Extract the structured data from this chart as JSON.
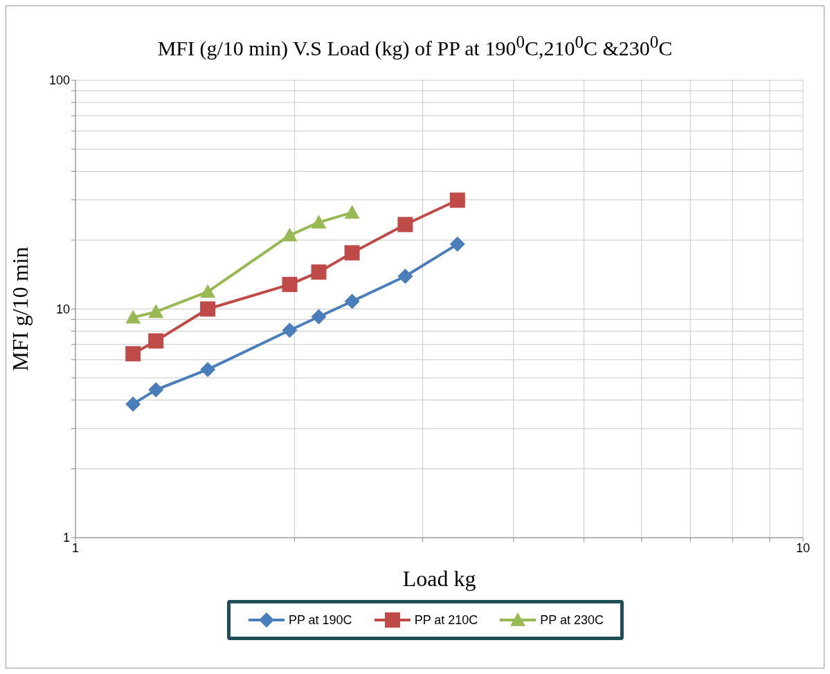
{
  "chart_data": {
    "type": "line",
    "title": "MFI (g/10 min) V.S Load (kg) of PP at 190$^{0}$C,210$^{0}$C &230$^{0}$C",
    "xlabel": "Load kg",
    "ylabel": "MFI g/10 min",
    "log": "xy",
    "grid": true,
    "legend": "bottom",
    "line_style": "solid",
    "xlim": [
      1,
      10
    ],
    "xticks": [
      1,
      {
        "value": 2,
        "label": null
      },
      {
        "value": 3,
        "label": null
      },
      {
        "value": 4,
        "label": null
      },
      {
        "value": 5,
        "label": null
      },
      {
        "value": 6,
        "label": null
      },
      {
        "value": 7,
        "label": null
      },
      {
        "value": 8,
        "label": null
      },
      {
        "value": 9,
        "label": null
      },
      10
    ],
    "ylim": [
      1,
      100
    ],
    "yticks": [
      1,
      {
        "value": 2,
        "label": null
      },
      {
        "value": 3,
        "label": null
      },
      {
        "value": 4,
        "label": null
      },
      {
        "value": 5,
        "label": null
      },
      {
        "value": 6,
        "label": null
      },
      {
        "value": 7,
        "label": null
      },
      {
        "value": 8,
        "label": null
      },
      {
        "value": 9,
        "label": null
      },
      10,
      {
        "value": 20,
        "label": null
      },
      {
        "value": 30,
        "label": null
      },
      {
        "value": 40,
        "label": null
      },
      {
        "value": 50,
        "label": null
      },
      {
        "value": 60,
        "label": null
      },
      {
        "value": 70,
        "label": null
      },
      {
        "value": 80,
        "label": null
      },
      {
        "value": 90,
        "label": null
      },
      100
    ],
    "series": [
      {
        "name": "PP at 190C",
        "color": "#4a7ebb",
        "marker": "diamond",
        "x": [
          1.2,
          1.29,
          1.52,
          1.97,
          2.16,
          2.4,
          2.84,
          3.35
        ],
        "values": [
          3.84,
          4.43,
          5.44,
          8.07,
          9.25,
          10.8,
          13.9,
          19.2
        ]
      },
      {
        "name": "PP at 210C",
        "color": "#be4b48",
        "marker": "square",
        "x": [
          1.2,
          1.29,
          1.52,
          1.97,
          2.16,
          2.4,
          2.84,
          3.35
        ],
        "values": [
          6.37,
          7.25,
          10,
          12.8,
          14.5,
          17.6,
          23.4,
          29.9
        ]
      },
      {
        "name": "PP at 230C",
        "color": "#98b954",
        "marker": "triangle",
        "x": [
          1.2,
          1.29,
          1.52,
          1.97,
          2.16,
          2.4
        ],
        "values": [
          9.18,
          9.72,
          11.9,
          21.0,
          23.9,
          26.4
        ]
      }
    ]
  }
}
